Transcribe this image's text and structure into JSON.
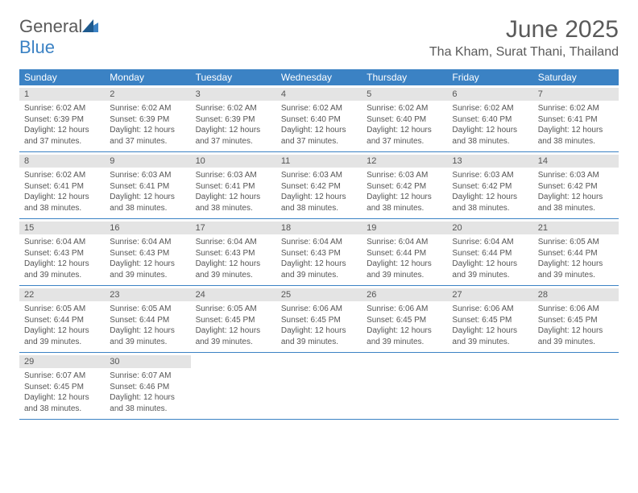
{
  "logo": {
    "general": "General",
    "blue": "Blue"
  },
  "title": "June 2025",
  "location": "Tha Kham, Surat Thani, Thailand",
  "colors": {
    "header_bg": "#3b82c4",
    "daynum_bg": "#e4e4e4",
    "text": "#555555",
    "logo_gray": "#5a5a5a",
    "logo_blue": "#3b82c4"
  },
  "typography": {
    "title_fontsize": 30,
    "location_fontsize": 16,
    "header_fontsize": 12,
    "daynum_fontsize": 11,
    "body_fontsize": 10
  },
  "day_headers": [
    "Sunday",
    "Monday",
    "Tuesday",
    "Wednesday",
    "Thursday",
    "Friday",
    "Saturday"
  ],
  "weeks": [
    [
      {
        "n": "1",
        "sr": "Sunrise: 6:02 AM",
        "ss": "Sunset: 6:39 PM",
        "d1": "Daylight: 12 hours",
        "d2": "and 37 minutes."
      },
      {
        "n": "2",
        "sr": "Sunrise: 6:02 AM",
        "ss": "Sunset: 6:39 PM",
        "d1": "Daylight: 12 hours",
        "d2": "and 37 minutes."
      },
      {
        "n": "3",
        "sr": "Sunrise: 6:02 AM",
        "ss": "Sunset: 6:39 PM",
        "d1": "Daylight: 12 hours",
        "d2": "and 37 minutes."
      },
      {
        "n": "4",
        "sr": "Sunrise: 6:02 AM",
        "ss": "Sunset: 6:40 PM",
        "d1": "Daylight: 12 hours",
        "d2": "and 37 minutes."
      },
      {
        "n": "5",
        "sr": "Sunrise: 6:02 AM",
        "ss": "Sunset: 6:40 PM",
        "d1": "Daylight: 12 hours",
        "d2": "and 37 minutes."
      },
      {
        "n": "6",
        "sr": "Sunrise: 6:02 AM",
        "ss": "Sunset: 6:40 PM",
        "d1": "Daylight: 12 hours",
        "d2": "and 38 minutes."
      },
      {
        "n": "7",
        "sr": "Sunrise: 6:02 AM",
        "ss": "Sunset: 6:41 PM",
        "d1": "Daylight: 12 hours",
        "d2": "and 38 minutes."
      }
    ],
    [
      {
        "n": "8",
        "sr": "Sunrise: 6:02 AM",
        "ss": "Sunset: 6:41 PM",
        "d1": "Daylight: 12 hours",
        "d2": "and 38 minutes."
      },
      {
        "n": "9",
        "sr": "Sunrise: 6:03 AM",
        "ss": "Sunset: 6:41 PM",
        "d1": "Daylight: 12 hours",
        "d2": "and 38 minutes."
      },
      {
        "n": "10",
        "sr": "Sunrise: 6:03 AM",
        "ss": "Sunset: 6:41 PM",
        "d1": "Daylight: 12 hours",
        "d2": "and 38 minutes."
      },
      {
        "n": "11",
        "sr": "Sunrise: 6:03 AM",
        "ss": "Sunset: 6:42 PM",
        "d1": "Daylight: 12 hours",
        "d2": "and 38 minutes."
      },
      {
        "n": "12",
        "sr": "Sunrise: 6:03 AM",
        "ss": "Sunset: 6:42 PM",
        "d1": "Daylight: 12 hours",
        "d2": "and 38 minutes."
      },
      {
        "n": "13",
        "sr": "Sunrise: 6:03 AM",
        "ss": "Sunset: 6:42 PM",
        "d1": "Daylight: 12 hours",
        "d2": "and 38 minutes."
      },
      {
        "n": "14",
        "sr": "Sunrise: 6:03 AM",
        "ss": "Sunset: 6:42 PM",
        "d1": "Daylight: 12 hours",
        "d2": "and 38 minutes."
      }
    ],
    [
      {
        "n": "15",
        "sr": "Sunrise: 6:04 AM",
        "ss": "Sunset: 6:43 PM",
        "d1": "Daylight: 12 hours",
        "d2": "and 39 minutes."
      },
      {
        "n": "16",
        "sr": "Sunrise: 6:04 AM",
        "ss": "Sunset: 6:43 PM",
        "d1": "Daylight: 12 hours",
        "d2": "and 39 minutes."
      },
      {
        "n": "17",
        "sr": "Sunrise: 6:04 AM",
        "ss": "Sunset: 6:43 PM",
        "d1": "Daylight: 12 hours",
        "d2": "and 39 minutes."
      },
      {
        "n": "18",
        "sr": "Sunrise: 6:04 AM",
        "ss": "Sunset: 6:43 PM",
        "d1": "Daylight: 12 hours",
        "d2": "and 39 minutes."
      },
      {
        "n": "19",
        "sr": "Sunrise: 6:04 AM",
        "ss": "Sunset: 6:44 PM",
        "d1": "Daylight: 12 hours",
        "d2": "and 39 minutes."
      },
      {
        "n": "20",
        "sr": "Sunrise: 6:04 AM",
        "ss": "Sunset: 6:44 PM",
        "d1": "Daylight: 12 hours",
        "d2": "and 39 minutes."
      },
      {
        "n": "21",
        "sr": "Sunrise: 6:05 AM",
        "ss": "Sunset: 6:44 PM",
        "d1": "Daylight: 12 hours",
        "d2": "and 39 minutes."
      }
    ],
    [
      {
        "n": "22",
        "sr": "Sunrise: 6:05 AM",
        "ss": "Sunset: 6:44 PM",
        "d1": "Daylight: 12 hours",
        "d2": "and 39 minutes."
      },
      {
        "n": "23",
        "sr": "Sunrise: 6:05 AM",
        "ss": "Sunset: 6:44 PM",
        "d1": "Daylight: 12 hours",
        "d2": "and 39 minutes."
      },
      {
        "n": "24",
        "sr": "Sunrise: 6:05 AM",
        "ss": "Sunset: 6:45 PM",
        "d1": "Daylight: 12 hours",
        "d2": "and 39 minutes."
      },
      {
        "n": "25",
        "sr": "Sunrise: 6:06 AM",
        "ss": "Sunset: 6:45 PM",
        "d1": "Daylight: 12 hours",
        "d2": "and 39 minutes."
      },
      {
        "n": "26",
        "sr": "Sunrise: 6:06 AM",
        "ss": "Sunset: 6:45 PM",
        "d1": "Daylight: 12 hours",
        "d2": "and 39 minutes."
      },
      {
        "n": "27",
        "sr": "Sunrise: 6:06 AM",
        "ss": "Sunset: 6:45 PM",
        "d1": "Daylight: 12 hours",
        "d2": "and 39 minutes."
      },
      {
        "n": "28",
        "sr": "Sunrise: 6:06 AM",
        "ss": "Sunset: 6:45 PM",
        "d1": "Daylight: 12 hours",
        "d2": "and 39 minutes."
      }
    ],
    [
      {
        "n": "29",
        "sr": "Sunrise: 6:07 AM",
        "ss": "Sunset: 6:45 PM",
        "d1": "Daylight: 12 hours",
        "d2": "and 38 minutes."
      },
      {
        "n": "30",
        "sr": "Sunrise: 6:07 AM",
        "ss": "Sunset: 6:46 PM",
        "d1": "Daylight: 12 hours",
        "d2": "and 38 minutes."
      },
      null,
      null,
      null,
      null,
      null
    ]
  ]
}
